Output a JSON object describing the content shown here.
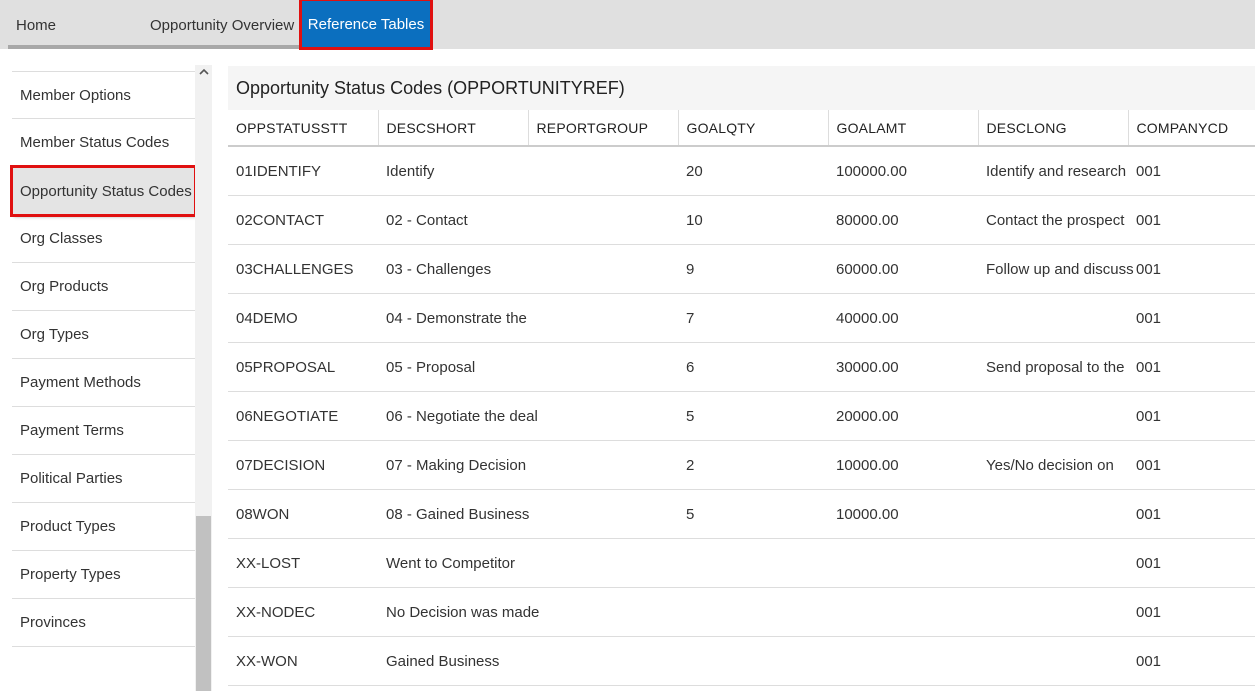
{
  "nav": {
    "tabs": [
      "Home",
      "Opportunity Overview",
      "Reference Tables"
    ]
  },
  "sidebar": {
    "scroll_up_icon": "chevron-up-icon",
    "items": [
      "Member Options",
      "Member Status Codes",
      "Opportunity Status Codes",
      "Org Classes",
      "Org Products",
      "Org Types",
      "Payment Methods",
      "Payment Terms",
      "Political Parties",
      "Product Types",
      "Property Types",
      "Provinces"
    ]
  },
  "panel": {
    "title": "Opportunity Status Codes (OPPORTUNITYREF)",
    "columns": [
      "OPPSTATUSSTT",
      "DESCSHORT",
      "REPORTGROUP",
      "GOALQTY",
      "GOALAMT",
      "DESCLONG",
      "COMPANYCD"
    ],
    "rows": [
      [
        "01IDENTIFY",
        "Identify",
        "",
        "20",
        "100000.00",
        "Identify and research",
        "001"
      ],
      [
        "02CONTACT",
        "02 - Contact",
        "",
        "10",
        "80000.00",
        "Contact the prospect",
        "001"
      ],
      [
        "03CHALLENGES",
        "03 - Challenges",
        "",
        "9",
        "60000.00",
        "Follow up and discuss",
        "001"
      ],
      [
        "04DEMO",
        "04 - Demonstrate the",
        "",
        "7",
        "40000.00",
        "",
        "001"
      ],
      [
        "05PROPOSAL",
        "05 - Proposal",
        "",
        "6",
        "30000.00",
        "Send proposal to the",
        "001"
      ],
      [
        "06NEGOTIATE",
        "06 - Negotiate the deal",
        "",
        "5",
        "20000.00",
        "",
        "001"
      ],
      [
        "07DECISION",
        "07 - Making Decision",
        "",
        "2",
        "10000.00",
        "Yes/No decision on",
        "001"
      ],
      [
        "08WON",
        "08 - Gained Business",
        "",
        "5",
        "10000.00",
        "",
        "001"
      ],
      [
        "XX-LOST",
        "Went to Competitor",
        "",
        "",
        "",
        "",
        "001"
      ],
      [
        "XX-NODEC",
        "No Decision was made",
        "",
        "",
        "",
        "",
        "001"
      ],
      [
        "XX-WON",
        "Gained Business",
        "",
        "",
        "",
        "",
        "001"
      ]
    ]
  }
}
